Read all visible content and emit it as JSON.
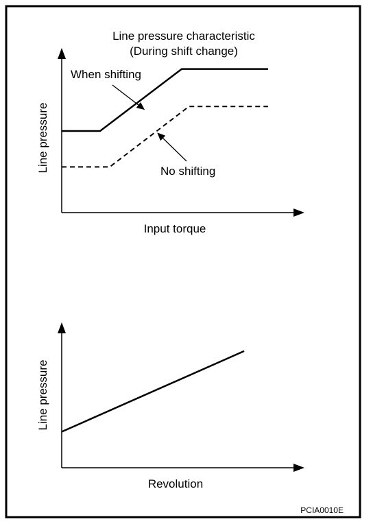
{
  "footer": {
    "code": "PCIA0010E"
  },
  "chart_data": [
    {
      "type": "line",
      "title": "Line pressure characteristic",
      "subtitle": "(During shift change)",
      "xlabel": "Input torque",
      "ylabel": "Line pressure",
      "grid": false,
      "x_ticks": "none",
      "y_ticks": "none",
      "xlim": [
        0,
        100
      ],
      "ylim": [
        0,
        100
      ],
      "series": [
        {
          "name": "When shifting",
          "style": "solid",
          "x": [
            0,
            16,
            50,
            86
          ],
          "y": [
            50,
            50,
            88,
            88
          ]
        },
        {
          "name": "No shifting",
          "style": "dashed",
          "x": [
            0,
            20,
            53,
            86
          ],
          "y": [
            28,
            28,
            65,
            65
          ]
        }
      ]
    },
    {
      "type": "line",
      "title": "",
      "xlabel": "Revolution",
      "ylabel": "Line pressure",
      "grid": false,
      "x_ticks": "none",
      "y_ticks": "none",
      "xlim": [
        0,
        100
      ],
      "ylim": [
        0,
        100
      ],
      "series": [
        {
          "name": "",
          "style": "solid",
          "x": [
            0,
            76
          ],
          "y": [
            25,
            81
          ]
        }
      ]
    }
  ],
  "colors": {
    "ink": "#000000",
    "background": "#ffffff"
  }
}
